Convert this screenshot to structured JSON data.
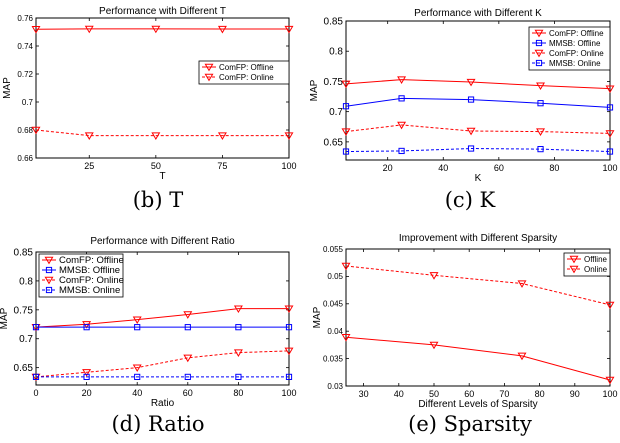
{
  "figure": {
    "captions": [
      "(b) T",
      "(c) K",
      "(d) Ratio",
      "(e) Sparsity"
    ]
  },
  "colors": {
    "comfp": "#ff0000",
    "mmsb": "#0000ff",
    "axis": "#000000"
  },
  "chart_data": [
    {
      "type": "line",
      "title": "Performance with Different T",
      "xlabel": "T",
      "ylabel": "MAP",
      "xlim": [
        5,
        100
      ],
      "ylim": [
        0.66,
        0.76
      ],
      "xticks": [
        25,
        50,
        75,
        100
      ],
      "xtick_labels": [
        "25",
        "50",
        "75",
        "100"
      ],
      "yticks": [
        0.66,
        0.68,
        0.7,
        0.72,
        0.74,
        0.76
      ],
      "ytick_labels": [
        "0.66",
        "0.68",
        "0.7",
        "0.72",
        "0.74",
        "0.76"
      ],
      "legend_position": "right-middle",
      "x": [
        5,
        25,
        50,
        75,
        100
      ],
      "series": [
        {
          "name": "ComFP: Offline",
          "values": [
            0.752,
            0.7522,
            0.7522,
            0.7521,
            0.7521
          ],
          "color": "#ff0000",
          "dashed": false,
          "marker": "triangle-down"
        },
        {
          "name": "ComFP: Online",
          "values": [
            0.68,
            0.676,
            0.676,
            0.676,
            0.676
          ],
          "color": "#ff0000",
          "dashed": true,
          "marker": "triangle-down"
        }
      ]
    },
    {
      "type": "line",
      "title": "Performance with Different K",
      "xlabel": "K",
      "ylabel": "MAP",
      "xlim": [
        5,
        100
      ],
      "ylim": [
        0.62,
        0.85
      ],
      "xticks": [
        20,
        40,
        60,
        80,
        100
      ],
      "xtick_labels": [
        "20",
        "40",
        "60",
        "80",
        "100"
      ],
      "yticks": [
        0.65,
        0.7,
        0.75,
        0.8,
        0.85
      ],
      "ytick_labels": [
        "0.65",
        "0.7",
        "0.75",
        "0.8",
        "0.85"
      ],
      "legend_position": "top-right",
      "x": [
        5,
        25,
        50,
        75,
        100
      ],
      "series": [
        {
          "name": "ComFP: Offline",
          "values": [
            0.746,
            0.753,
            0.749,
            0.743,
            0.738
          ],
          "color": "#ff0000",
          "dashed": false,
          "marker": "triangle-down"
        },
        {
          "name": "MMSB: Offline",
          "values": [
            0.709,
            0.722,
            0.72,
            0.714,
            0.707
          ],
          "color": "#0000ff",
          "dashed": false,
          "marker": "square"
        },
        {
          "name": "ComFP: Online",
          "values": [
            0.667,
            0.678,
            0.668,
            0.667,
            0.664
          ],
          "color": "#ff0000",
          "dashed": true,
          "marker": "triangle-down"
        },
        {
          "name": "MMSB: Online",
          "values": [
            0.634,
            0.635,
            0.639,
            0.638,
            0.634
          ],
          "color": "#0000ff",
          "dashed": true,
          "marker": "square"
        }
      ]
    },
    {
      "type": "line",
      "title": "Performance with Different Ratio",
      "xlabel": "Ratio",
      "ylabel": "MAP",
      "xlim": [
        0,
        100
      ],
      "ylim": [
        0.62,
        0.85
      ],
      "xticks": [
        0,
        20,
        40,
        60,
        80,
        100
      ],
      "xtick_labels": [
        "0",
        "20",
        "40",
        "60",
        "80",
        "100"
      ],
      "yticks": [
        0.65,
        0.7,
        0.75,
        0.8,
        0.85
      ],
      "ytick_labels": [
        "0.65",
        "0.7",
        "0.75",
        "0.8",
        "0.85"
      ],
      "legend_position": "top-left",
      "x": [
        0,
        20,
        40,
        60,
        80,
        100
      ],
      "series": [
        {
          "name": "ComFP: Offline",
          "values": [
            0.72,
            0.725,
            0.733,
            0.742,
            0.752,
            0.752
          ],
          "color": "#ff0000",
          "dashed": false,
          "marker": "triangle-down"
        },
        {
          "name": "MMSB: Offline",
          "values": [
            0.72,
            0.72,
            0.72,
            0.72,
            0.72,
            0.72
          ],
          "color": "#0000ff",
          "dashed": false,
          "marker": "square"
        },
        {
          "name": "ComFP: Online",
          "values": [
            0.634,
            0.642,
            0.65,
            0.667,
            0.676,
            0.679
          ],
          "color": "#ff0000",
          "dashed": true,
          "marker": "triangle-down"
        },
        {
          "name": "MMSB: Online",
          "values": [
            0.634,
            0.634,
            0.634,
            0.634,
            0.634,
            0.634
          ],
          "color": "#0000ff",
          "dashed": true,
          "marker": "square"
        }
      ]
    },
    {
      "type": "line",
      "title": "Improvement with Different Sparsity",
      "xlabel": "Different Levels of Sparsity",
      "ylabel": "MAP",
      "xlim": [
        25,
        100
      ],
      "ylim": [
        0.03,
        0.055
      ],
      "xticks": [
        30,
        40,
        50,
        60,
        70,
        80,
        90,
        100
      ],
      "xtick_labels": [
        "30",
        "40",
        "50",
        "60",
        "70",
        "80",
        "90",
        "100"
      ],
      "yticks": [
        0.03,
        0.035,
        0.04,
        0.045,
        0.05,
        0.055
      ],
      "ytick_labels": [
        "0.03",
        "0.035",
        "0.04",
        "0.045",
        "0.05",
        "0.055"
      ],
      "legend_position": "top-right",
      "x": [
        25,
        50,
        75,
        100
      ],
      "series": [
        {
          "name": "Offline",
          "values": [
            0.0389,
            0.0375,
            0.0355,
            0.0311
          ],
          "color": "#ff0000",
          "dashed": false,
          "marker": "triangle-down"
        },
        {
          "name": "Online",
          "values": [
            0.0519,
            0.0502,
            0.0487,
            0.0448
          ],
          "color": "#ff0000",
          "dashed": true,
          "marker": "triangle-down"
        }
      ]
    }
  ]
}
